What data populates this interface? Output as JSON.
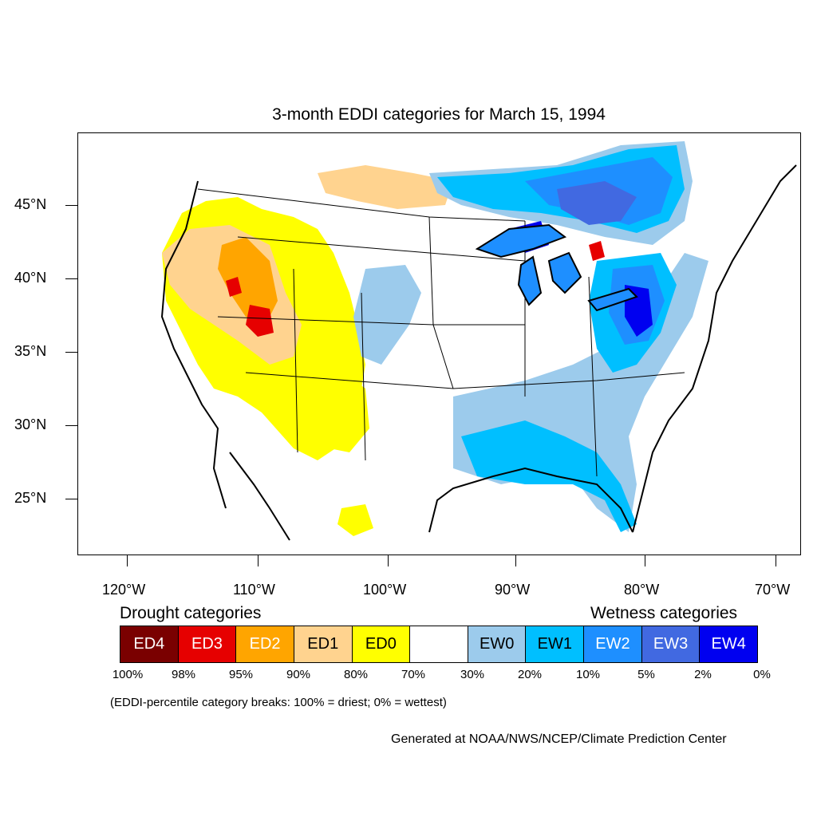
{
  "title": "3-month EDDI categories for March 15, 1994",
  "latitude_labels": [
    "45°N",
    "40°N",
    "35°N",
    "30°N",
    "25°N"
  ],
  "longitude_labels": [
    "120°W",
    "110°W",
    "100°W",
    "90°W",
    "80°W",
    "70°W"
  ],
  "drought_heading": "Drought categories",
  "wetness_heading": "Wetness categories",
  "legend": [
    {
      "label": "ED4",
      "color": "#7a0000",
      "text_color": "#ffffff"
    },
    {
      "label": "ED3",
      "color": "#e60000",
      "text_color": "#ffffff"
    },
    {
      "label": "ED2",
      "color": "#ffa500",
      "text_color": "#ffffff"
    },
    {
      "label": "ED1",
      "color": "#ffd38f",
      "text_color": "#000000"
    },
    {
      "label": "ED0",
      "color": "#ffff00",
      "text_color": "#000000"
    },
    {
      "label": "",
      "color": "#ffffff",
      "text_color": "#000000"
    },
    {
      "label": "EW0",
      "color": "#9ccbec",
      "text_color": "#000000"
    },
    {
      "label": "EW1",
      "color": "#00bfff",
      "text_color": "#000000"
    },
    {
      "label": "EW2",
      "color": "#1e8fff",
      "text_color": "#ffffff"
    },
    {
      "label": "EW3",
      "color": "#4169e1",
      "text_color": "#ffffff"
    },
    {
      "label": "EW4",
      "color": "#0000f0",
      "text_color": "#ffffff"
    }
  ],
  "percentile_breaks": [
    "100%",
    "98%",
    "95%",
    "90%",
    "80%",
    "70%",
    "30%",
    "20%",
    "10%",
    "5%",
    "2%",
    "0%"
  ],
  "note": "(EDDI-percentile category breaks: 100% = driest; 0% = wettest)",
  "credit": "Generated at NOAA/NWS/NCEP/Climate Prediction Center"
}
